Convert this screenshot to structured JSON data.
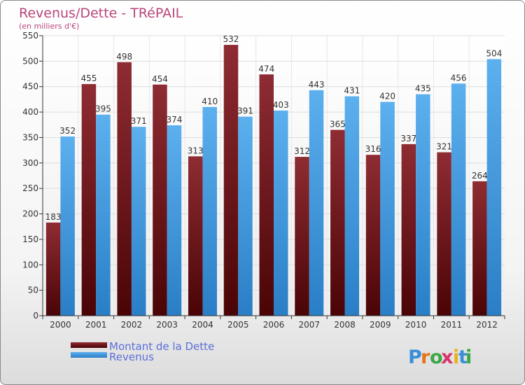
{
  "chart_data": {
    "type": "bar",
    "title": "Revenus/Dette - TRéPAIL",
    "subtitle": "(en milliers d'€)",
    "categories": [
      "2000",
      "2001",
      "2002",
      "2003",
      "2004",
      "2005",
      "2006",
      "2007",
      "2008",
      "2009",
      "2010",
      "2011",
      "2012"
    ],
    "series": [
      {
        "name": "Montant de la Dette",
        "color": "#7a1e22",
        "values": [
          183,
          455,
          498,
          454,
          313,
          532,
          474,
          312,
          365,
          316,
          337,
          321,
          264
        ]
      },
      {
        "name": "Revenus",
        "color": "#4aa3e6",
        "values": [
          352,
          395,
          371,
          374,
          410,
          391,
          403,
          443,
          431,
          420,
          435,
          456,
          504
        ]
      }
    ],
    "ylim": [
      0,
      550
    ],
    "yticks": [
      0,
      50,
      100,
      150,
      200,
      250,
      300,
      350,
      400,
      450,
      500,
      550
    ],
    "grid": true,
    "legend_position": "bottom-left"
  },
  "logo": {
    "text": "Proxiti",
    "letters": [
      "P",
      "r",
      "o",
      "x",
      "i",
      "t",
      "i"
    ],
    "colors": [
      "#3a8fd8",
      "#e8731a",
      "#39a845",
      "#d8336b",
      "#e8b21a",
      "#3a8fd8",
      "#39a845"
    ]
  }
}
